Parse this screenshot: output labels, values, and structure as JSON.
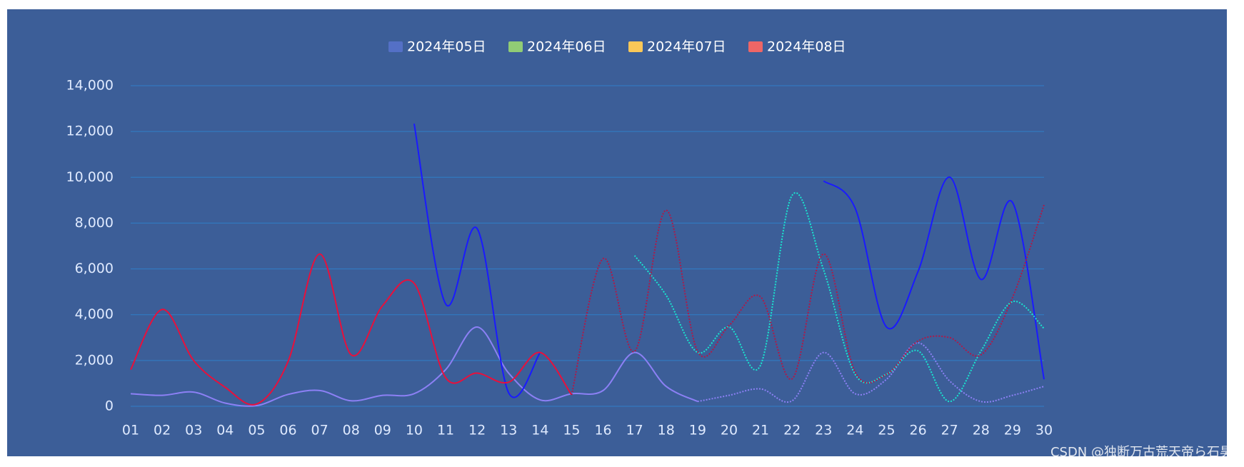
{
  "chart_data": {
    "type": "line",
    "smooth": true,
    "grid": true,
    "legend": "top",
    "watermark": "CSDN @独断万古荒天帝ら石昊",
    "categories": [
      "01",
      "02",
      "03",
      "04",
      "05",
      "06",
      "07",
      "08",
      "09",
      "10",
      "11",
      "12",
      "13",
      "14",
      "15",
      "16",
      "17",
      "18",
      "19",
      "20",
      "21",
      "22",
      "23",
      "24",
      "25",
      "26",
      "27",
      "28",
      "29",
      "30"
    ],
    "ylim": [
      0,
      14000
    ],
    "yticks": [
      0,
      {
        "value": 2000,
        "label": "2,000"
      },
      {
        "value": 4000,
        "label": "4,000"
      },
      {
        "value": 6000,
        "label": "6,000"
      },
      {
        "value": 8000,
        "label": "8,000"
      },
      {
        "value": 10000,
        "label": "10,000"
      },
      {
        "value": 12000,
        "label": "12,000"
      },
      {
        "value": 14000,
        "label": "14,000"
      }
    ],
    "series": [
      {
        "name": "2024年05日",
        "color": "#5470c6",
        "line_colors": [
          "#8c80f5",
          "#8c80f5"
        ],
        "dotted_from": 18,
        "values": [
          550,
          480,
          620,
          140,
          30,
          520,
          690,
          240,
          480,
          550,
          1600,
          3460,
          1450,
          280,
          550,
          690,
          2350,
          870,
          210,
          480,
          760,
          240,
          2350,
          550,
          1180,
          2770,
          1110,
          210,
          480,
          870
        ]
      },
      {
        "name": "2024年06日",
        "color": "#91cc75",
        "line_colors": [
          "#1a1aff",
          "#1a1aff"
        ],
        "values": [
          null,
          null,
          null,
          null,
          null,
          null,
          null,
          null,
          null,
          12340,
          4470,
          7760,
          590,
          2350,
          null,
          null,
          null,
          null,
          null,
          null,
          null,
          null,
          9840,
          8660,
          3460,
          5890,
          10010,
          5540,
          8900,
          1180
        ]
      },
      {
        "name": "2024年07日",
        "color": "#fac858",
        "line_colors": [
          "#19e6d0",
          "#19e6d0"
        ],
        "dotted_from": 16,
        "values": [
          null,
          null,
          null,
          null,
          null,
          null,
          null,
          null,
          null,
          null,
          null,
          null,
          null,
          null,
          null,
          null,
          6580,
          4850,
          2350,
          3460,
          1800,
          9210,
          5960,
          1400,
          1400,
          2420,
          210,
          2420,
          4570,
          3400
        ]
      },
      {
        "name": "2024年08日",
        "color": "#ee6666",
        "line_colors": [
          "#e8103c",
          "#b01848"
        ],
        "dotted_from": 14,
        "values": [
          1600,
          4230,
          2000,
          830,
          100,
          1970,
          6650,
          2250,
          4400,
          5370,
          1250,
          1450,
          1050,
          2350,
          500,
          6450,
          2400,
          8560,
          2400,
          3530,
          4780,
          1200,
          6650,
          1500,
          1400,
          2850,
          3000,
          2250,
          4750,
          8800
        ]
      }
    ]
  }
}
